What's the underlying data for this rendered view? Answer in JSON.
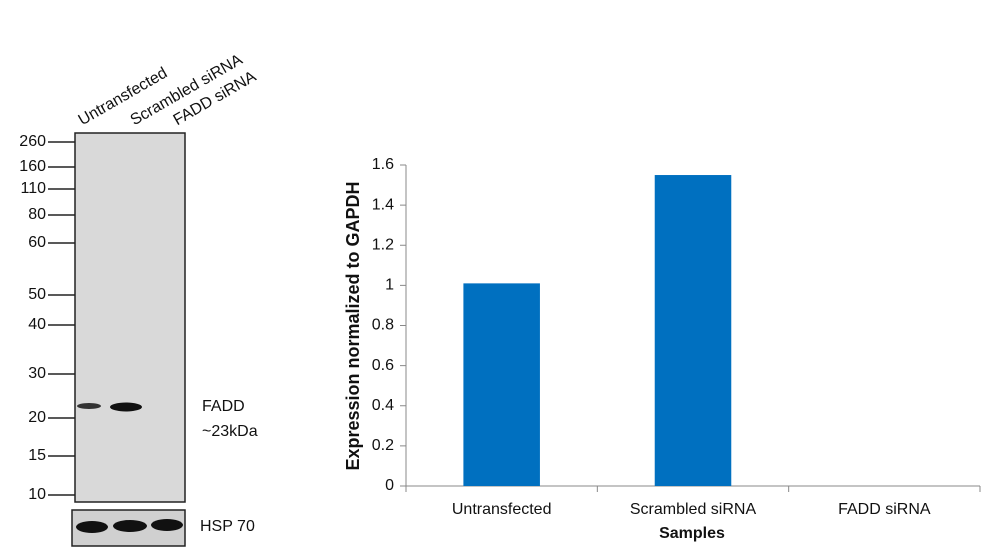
{
  "blot": {
    "lanes": [
      "Untransfected",
      "Scrambled siRNA",
      "FADD siRNA"
    ],
    "markers": [
      "260",
      "160",
      "110",
      "80",
      "60",
      "50",
      "40",
      "30",
      "20",
      "15",
      "10"
    ],
    "band_label": "FADD",
    "band_size": "~23kDa",
    "loading_control": "HSP 70"
  },
  "chart_data": {
    "type": "bar",
    "categories": [
      "Untransfected",
      "Scrambled siRNA",
      "FADD siRNA"
    ],
    "values": [
      1.01,
      1.55,
      0
    ],
    "color": "#0070c0",
    "ylim": [
      0,
      1.6
    ],
    "yticks": [
      0,
      0.2,
      0.4,
      0.6,
      0.8,
      1,
      1.2,
      1.4,
      1.6
    ],
    "x_label": "Samples",
    "y_label": "Expression normalized to GAPDH"
  }
}
